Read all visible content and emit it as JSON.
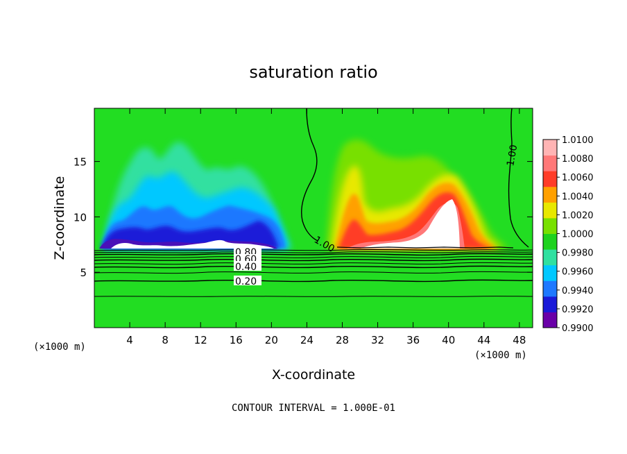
{
  "chart_data": {
    "type": "heatmap",
    "title": "saturation ratio",
    "xlabel": "X-coordinate",
    "ylabel": "Z-coordinate",
    "x_unit": "(×1000 m)",
    "y_unit": "(×1000 m)",
    "xlim": [
      0,
      49.5
    ],
    "ylim": [
      0,
      19.8
    ],
    "xticks": [
      4,
      8,
      12,
      16,
      20,
      24,
      28,
      32,
      36,
      40,
      44,
      48
    ],
    "yticks": [
      5,
      10,
      15
    ],
    "footer": "CONTOUR INTERVAL = 1.000E-01",
    "colorbar": {
      "levels": [
        0.99,
        0.992,
        0.994,
        0.996,
        0.998,
        1.0,
        1.002,
        1.004,
        1.006,
        1.008,
        1.01
      ],
      "labels": [
        "0.9900",
        "0.9920",
        "0.9940",
        "0.9960",
        "0.9980",
        "1.0000",
        "1.0020",
        "1.0040",
        "1.0060",
        "1.0080",
        "1.0100"
      ],
      "colors": [
        "#6a00a8",
        "#1a1ad8",
        "#1e78ff",
        "#00c8ff",
        "#30e0a0",
        "#1ed21e",
        "#78e000",
        "#e8e800",
        "#ffa000",
        "#ff3c28",
        "#ff7878",
        "#ffb4b4"
      ]
    },
    "background_color": "#22dd22",
    "cloud_base_z": 7.3,
    "features": [
      {
        "name": "dry-region",
        "x_range": [
          1.5,
          21.5
        ],
        "top_z": 11.0,
        "min_value": 0.99
      },
      {
        "name": "supersaturated-region",
        "x_range": [
          27.5,
          47.0
        ],
        "top_z": 14.5,
        "max_value": 1.01
      }
    ],
    "contour_lines": [
      {
        "label": "1.00",
        "type": "saturation"
      },
      {
        "label": "0.80",
        "z": 6.9
      },
      {
        "label": "0.60",
        "z": 6.4
      },
      {
        "label": "0.40",
        "z": 5.6
      },
      {
        "label": "0.20",
        "z": 4.5
      }
    ],
    "low_level_contours_z": [
      7.2,
      7.1,
      6.9,
      6.6,
      6.4,
      6.0,
      5.6,
      5.1,
      4.5,
      2.9
    ]
  }
}
